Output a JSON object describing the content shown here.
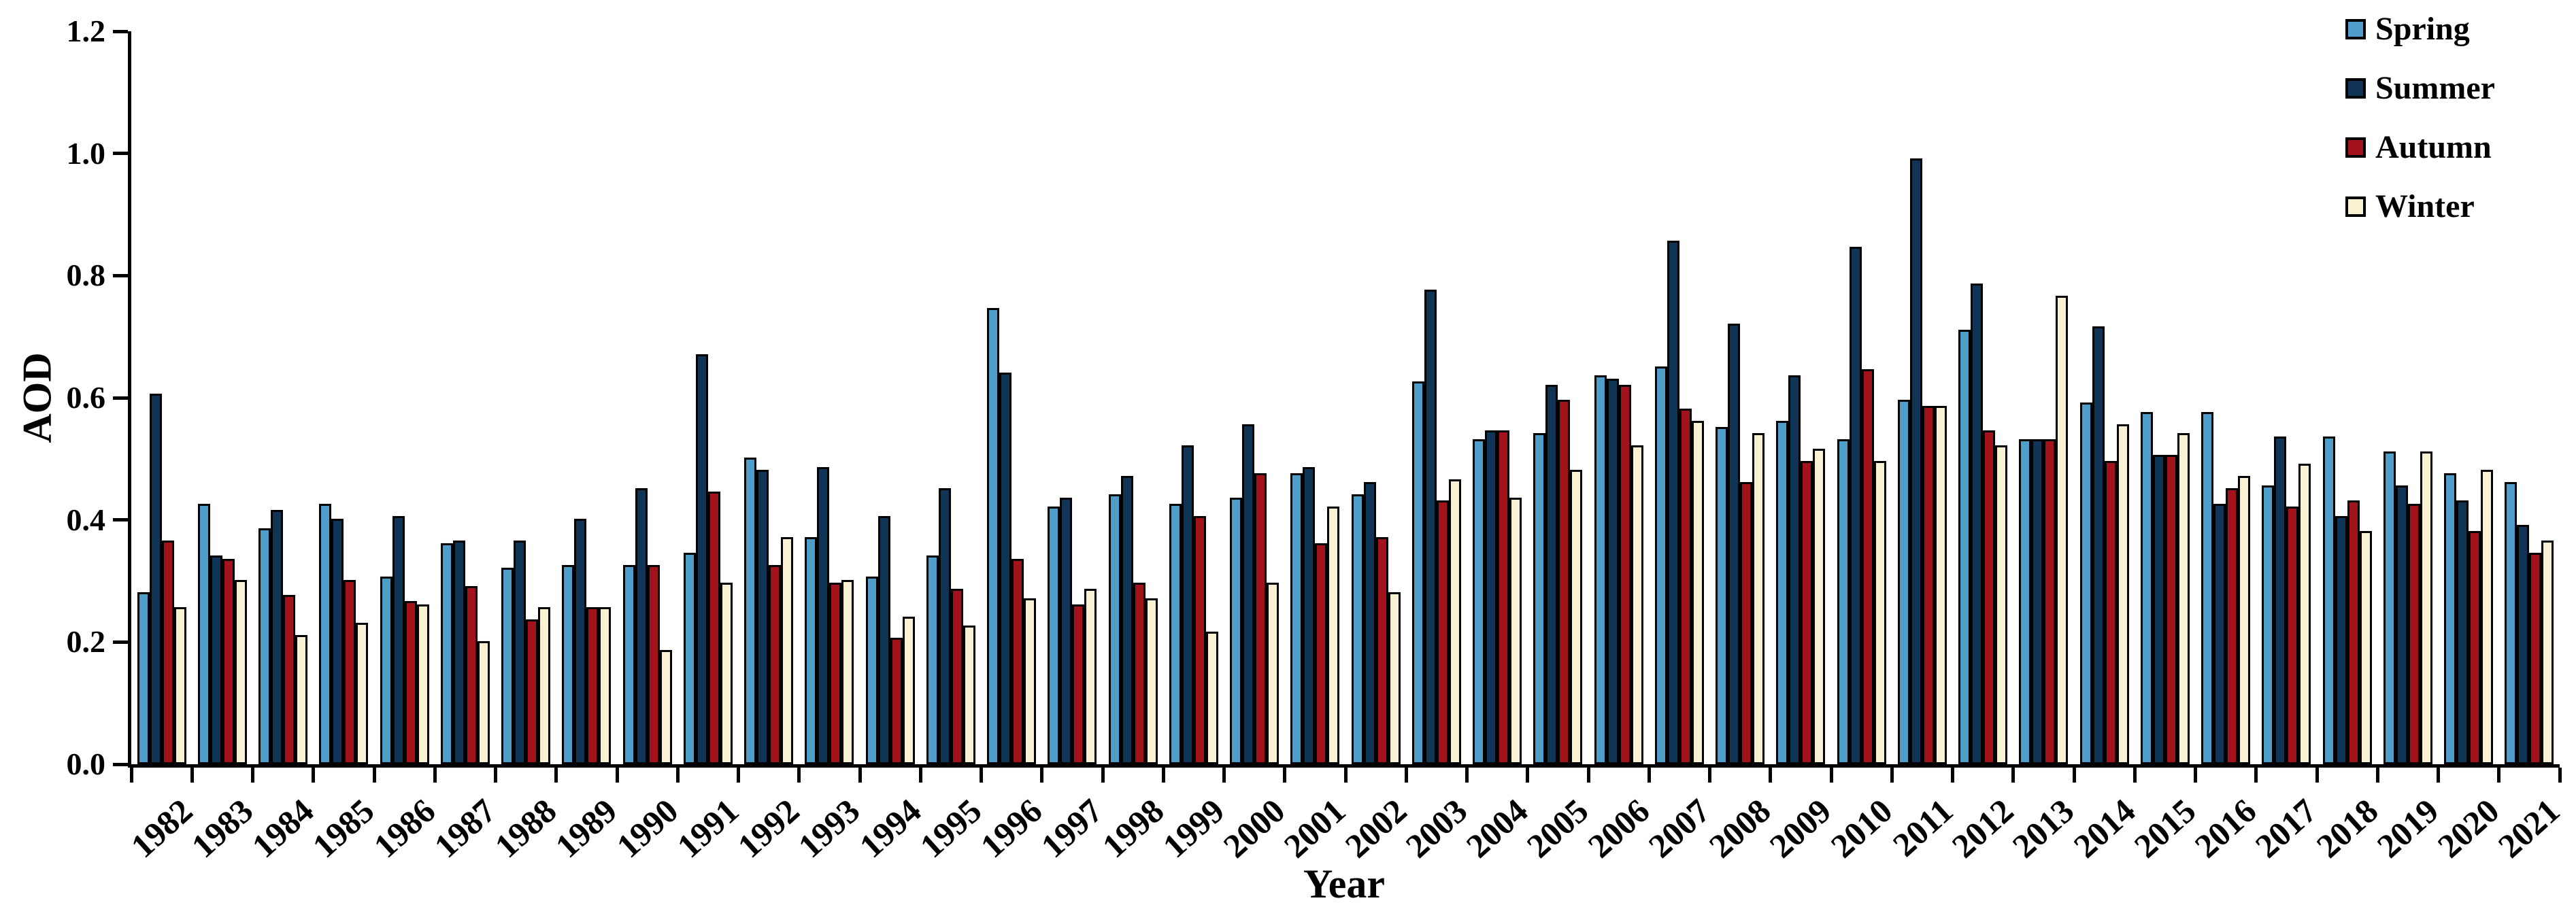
{
  "chart_data": {
    "type": "bar",
    "title": "",
    "xlabel": "Year",
    "ylabel": "AOD",
    "ylim": [
      0,
      1.2
    ],
    "ytick_step": 0.2,
    "ytick_labels": [
      "0.0",
      "0.2",
      "0.4",
      "0.6",
      "0.8",
      "1.0",
      "1.2"
    ],
    "grid": false,
    "legend_position": "top-right",
    "axis_color": "#000000",
    "bar_outline_color": "#000000",
    "categories": [
      "1982",
      "1983",
      "1984",
      "1985",
      "1986",
      "1987",
      "1988",
      "1989",
      "1990",
      "1991",
      "1992",
      "1993",
      "1994",
      "1995",
      "1996",
      "1997",
      "1998",
      "1999",
      "2000",
      "2001",
      "2002",
      "2003",
      "2004",
      "2005",
      "2006",
      "2007",
      "2008",
      "2009",
      "2010",
      "2011",
      "2012",
      "2013",
      "2014",
      "2015",
      "2016",
      "2017",
      "2018",
      "2019",
      "2020",
      "2021"
    ],
    "series": [
      {
        "name": "Spring",
        "color": "#4F9DC9",
        "values": [
          0.275,
          0.42,
          0.38,
          0.42,
          0.3,
          0.355,
          0.315,
          0.32,
          0.32,
          0.34,
          0.495,
          0.365,
          0.3,
          0.335,
          0.74,
          0.415,
          0.435,
          0.42,
          0.43,
          0.47,
          0.435,
          0.62,
          0.525,
          0.535,
          0.63,
          0.645,
          0.545,
          0.555,
          0.525,
          0.59,
          0.705,
          0.525,
          0.585,
          0.57,
          0.57,
          0.45,
          0.53,
          0.505,
          0.47,
          0.455
        ]
      },
      {
        "name": "Summer",
        "color": "#0F3456",
        "values": [
          0.6,
          0.335,
          0.41,
          0.395,
          0.4,
          0.36,
          0.36,
          0.395,
          0.445,
          0.665,
          0.475,
          0.48,
          0.4,
          0.445,
          0.635,
          0.43,
          0.465,
          0.515,
          0.55,
          0.48,
          0.455,
          0.77,
          0.54,
          0.615,
          0.625,
          0.85,
          0.715,
          0.63,
          0.84,
          0.985,
          0.78,
          0.525,
          0.71,
          0.5,
          0.42,
          0.53,
          0.4,
          0.45,
          0.425,
          0.385
        ]
      },
      {
        "name": "Autumn",
        "color": "#A2121B",
        "values": [
          0.36,
          0.33,
          0.27,
          0.295,
          0.26,
          0.285,
          0.23,
          0.25,
          0.32,
          0.44,
          0.32,
          0.29,
          0.2,
          0.28,
          0.33,
          0.255,
          0.29,
          0.4,
          0.47,
          0.355,
          0.365,
          0.425,
          0.54,
          0.59,
          0.615,
          0.575,
          0.455,
          0.49,
          0.64,
          0.58,
          0.54,
          0.525,
          0.49,
          0.5,
          0.445,
          0.415,
          0.425,
          0.42,
          0.375,
          0.34
        ]
      },
      {
        "name": "Winter",
        "color": "#FAF0D2",
        "values": [
          0.25,
          0.295,
          0.205,
          0.225,
          0.255,
          0.195,
          0.25,
          0.25,
          0.18,
          0.29,
          0.365,
          0.295,
          0.235,
          0.22,
          0.265,
          0.28,
          0.265,
          0.21,
          0.29,
          0.415,
          0.275,
          0.46,
          0.43,
          0.475,
          0.515,
          0.555,
          0.535,
          0.51,
          0.49,
          0.58,
          0.515,
          0.76,
          0.55,
          0.535,
          0.465,
          0.485,
          0.375,
          0.505,
          0.475,
          0.36
        ]
      }
    ]
  }
}
